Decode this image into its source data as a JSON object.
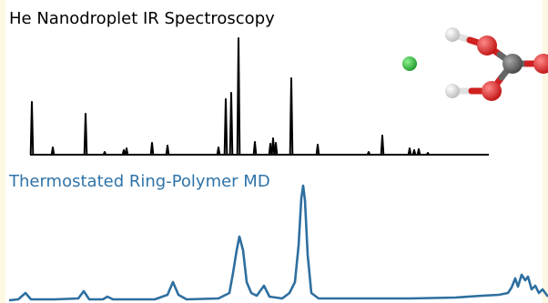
{
  "chart_data": [
    {
      "type": "stick",
      "title": "He Nanodroplet IR Spectroscopy",
      "color": "#000000",
      "xlim": [
        0,
        602
      ],
      "ylim": [
        0,
        140
      ],
      "x": [
        35,
        58,
        94,
        115,
        136,
        139,
        167,
        184,
        240,
        248,
        254,
        262,
        280,
        297,
        300,
        303,
        320,
        349,
        405,
        420,
        450,
        455,
        460,
        470
      ],
      "values": [
        58,
        8,
        45,
        3,
        5,
        7,
        13,
        10,
        8,
        61,
        68,
        128,
        14,
        12,
        18,
        13,
        84,
        11,
        3,
        21,
        7,
        5,
        6,
        2
      ]
    },
    {
      "type": "line",
      "title": "Thermostated Ring-Polymer MD",
      "color": "#2e6fa0",
      "xlim": [
        0,
        602
      ],
      "ylim": [
        0,
        140
      ],
      "x": [
        10,
        20,
        28,
        34,
        60,
        86,
        92,
        98,
        113,
        118,
        124,
        170,
        184,
        190,
        196,
        205,
        240,
        252,
        256,
        260,
        263,
        267,
        271,
        276,
        282,
        290,
        296,
        310,
        318,
        324,
        328,
        331,
        333,
        335,
        338,
        342,
        350,
        400,
        450,
        500,
        530,
        548,
        558,
        562,
        566,
        569,
        573,
        577,
        580,
        584,
        588,
        592,
        596,
        602
      ],
      "values": [
        0,
        1,
        8,
        1,
        1,
        2,
        10,
        1,
        1,
        4,
        1,
        1,
        6,
        20,
        6,
        1,
        2,
        8,
        30,
        55,
        70,
        55,
        20,
        8,
        5,
        16,
        4,
        2,
        8,
        20,
        60,
        112,
        126,
        110,
        50,
        8,
        2,
        2,
        2,
        3,
        5,
        6,
        8,
        14,
        24,
        15,
        28,
        22,
        26,
        12,
        16,
        8,
        12,
        4
      ]
    }
  ]
}
